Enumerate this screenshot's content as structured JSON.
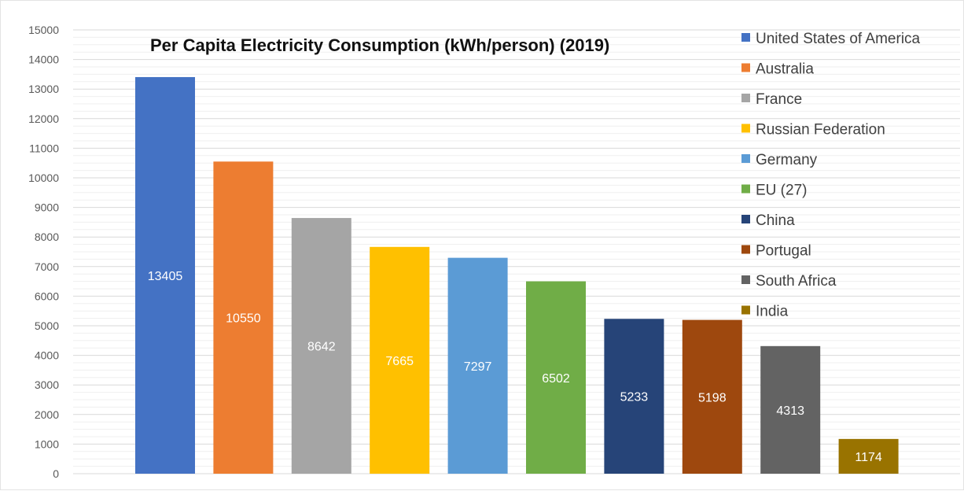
{
  "chart_data": {
    "type": "bar",
    "title": "Per Capita Electricity Consumption (kWh/person) (2019)",
    "xlabel": "",
    "ylabel": "",
    "ylim": [
      0,
      15000
    ],
    "y_ticks": [
      0,
      1000,
      2000,
      3000,
      4000,
      5000,
      6000,
      7000,
      8000,
      9000,
      10000,
      11000,
      12000,
      13000,
      14000,
      15000
    ],
    "grid": true,
    "legend_position": "right",
    "series": [
      {
        "name": "United States of America",
        "value": 13405,
        "label": "13405",
        "color": "#4472C4"
      },
      {
        "name": "Australia",
        "value": 10550,
        "label": "10550",
        "color": "#ED7D31"
      },
      {
        "name": "France",
        "value": 8642,
        "label": "8642",
        "color": "#A5A5A5"
      },
      {
        "name": "Russian Federation",
        "value": 7665,
        "label": "7665",
        "color": "#FFC000"
      },
      {
        "name": "Germany",
        "value": 7297,
        "label": "7297",
        "color": "#5B9BD5"
      },
      {
        "name": "EU (27)",
        "value": 6502,
        "label": "6502",
        "color": "#70AD47"
      },
      {
        "name": "China",
        "value": 5233,
        "label": "5233",
        "color": "#264478"
      },
      {
        "name": "Portugal",
        "value": 5198,
        "label": "5198",
        "color": "#9E480E"
      },
      {
        "name": "South Africa",
        "value": 4313,
        "label": "4313",
        "color": "#636363"
      },
      {
        "name": "India",
        "value": 1174,
        "label": "1174",
        "color": "#997300"
      }
    ]
  }
}
